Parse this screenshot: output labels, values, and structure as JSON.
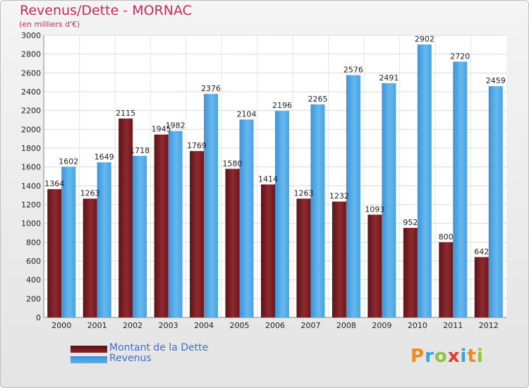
{
  "title": "Revenus/Dette - MORNAC",
  "subtitle": "(en milliers d'€)",
  "logo": "Proxiti",
  "colors": {
    "dette": "#7a1d22",
    "revenus": "#4ea6e4",
    "title": "#c42b5a",
    "legend_text": "#3b6fd6"
  },
  "legend": [
    {
      "name": "Montant de la Dette",
      "color": "#7a1d22"
    },
    {
      "name": "Revenus",
      "color": "#4ea6e4"
    }
  ],
  "chart_data": {
    "type": "bar",
    "title": "Revenus/Dette - MORNAC",
    "subtitle": "(en milliers d'€)",
    "xlabel": "",
    "ylabel": "",
    "ylim": [
      0,
      3000
    ],
    "yticks": [
      0,
      200,
      400,
      600,
      800,
      1000,
      1200,
      1400,
      1600,
      1800,
      2000,
      2200,
      2400,
      2600,
      2800,
      3000
    ],
    "grid": true,
    "legend_position": "bottom-left",
    "categories": [
      "2000",
      "2001",
      "2002",
      "2003",
      "2004",
      "2005",
      "2006",
      "2007",
      "2008",
      "2009",
      "2010",
      "2011",
      "2012"
    ],
    "series": [
      {
        "name": "Montant de la Dette",
        "values": [
          1364,
          1263,
          2115,
          1945,
          1769,
          1580,
          1414,
          1263,
          1232,
          1093,
          952,
          800,
          642
        ]
      },
      {
        "name": "Revenus",
        "values": [
          1602,
          1649,
          1718,
          1982,
          2376,
          2104,
          2196,
          2265,
          2576,
          2491,
          2902,
          2720,
          2459
        ]
      }
    ]
  }
}
